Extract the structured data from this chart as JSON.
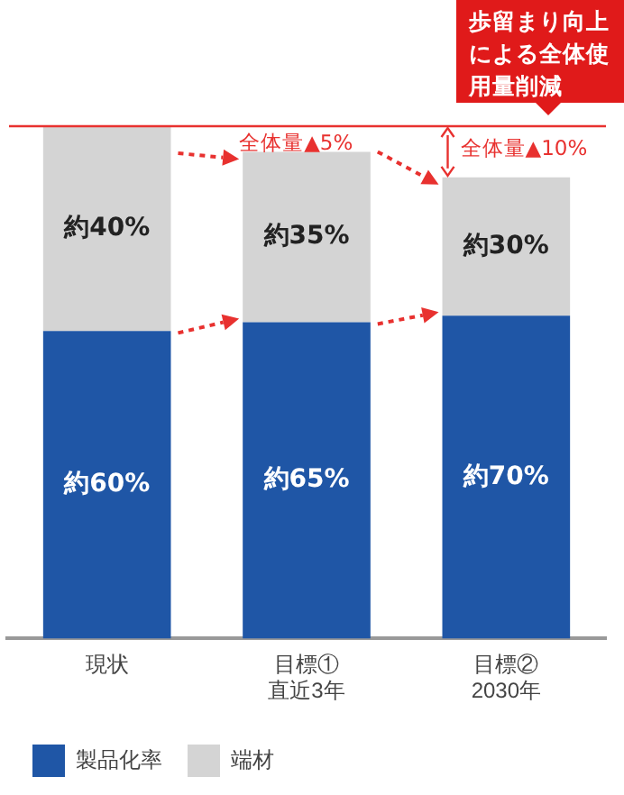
{
  "chart_data": {
    "type": "bar",
    "stacked": true,
    "grid": false,
    "tick_labels": "x",
    "ylim": [
      0,
      100
    ],
    "legend": "bottom left",
    "categories": [
      "現状",
      "目標①\n直近3年",
      "目標②\n2030年"
    ],
    "series": [
      {
        "name": "製品化率",
        "color": "#1f56a6",
        "values": [
          60,
          61.75,
          63
        ],
        "value_labels": [
          "約60%",
          "約65%",
          "約70%"
        ]
      },
      {
        "name": "端材",
        "color": "#d4d4d4",
        "values": [
          40,
          33.25,
          27
        ],
        "value_labels": [
          "約40%",
          "約35%",
          "約30%"
        ]
      }
    ],
    "ref_lines": [
      {
        "axis": "y",
        "value": 100,
        "color": "#e8312f"
      }
    ],
    "annotations": [
      "歩留まり向上による全体使用量削減",
      "全体量▲5%",
      "全体量▲10%"
    ]
  }
}
